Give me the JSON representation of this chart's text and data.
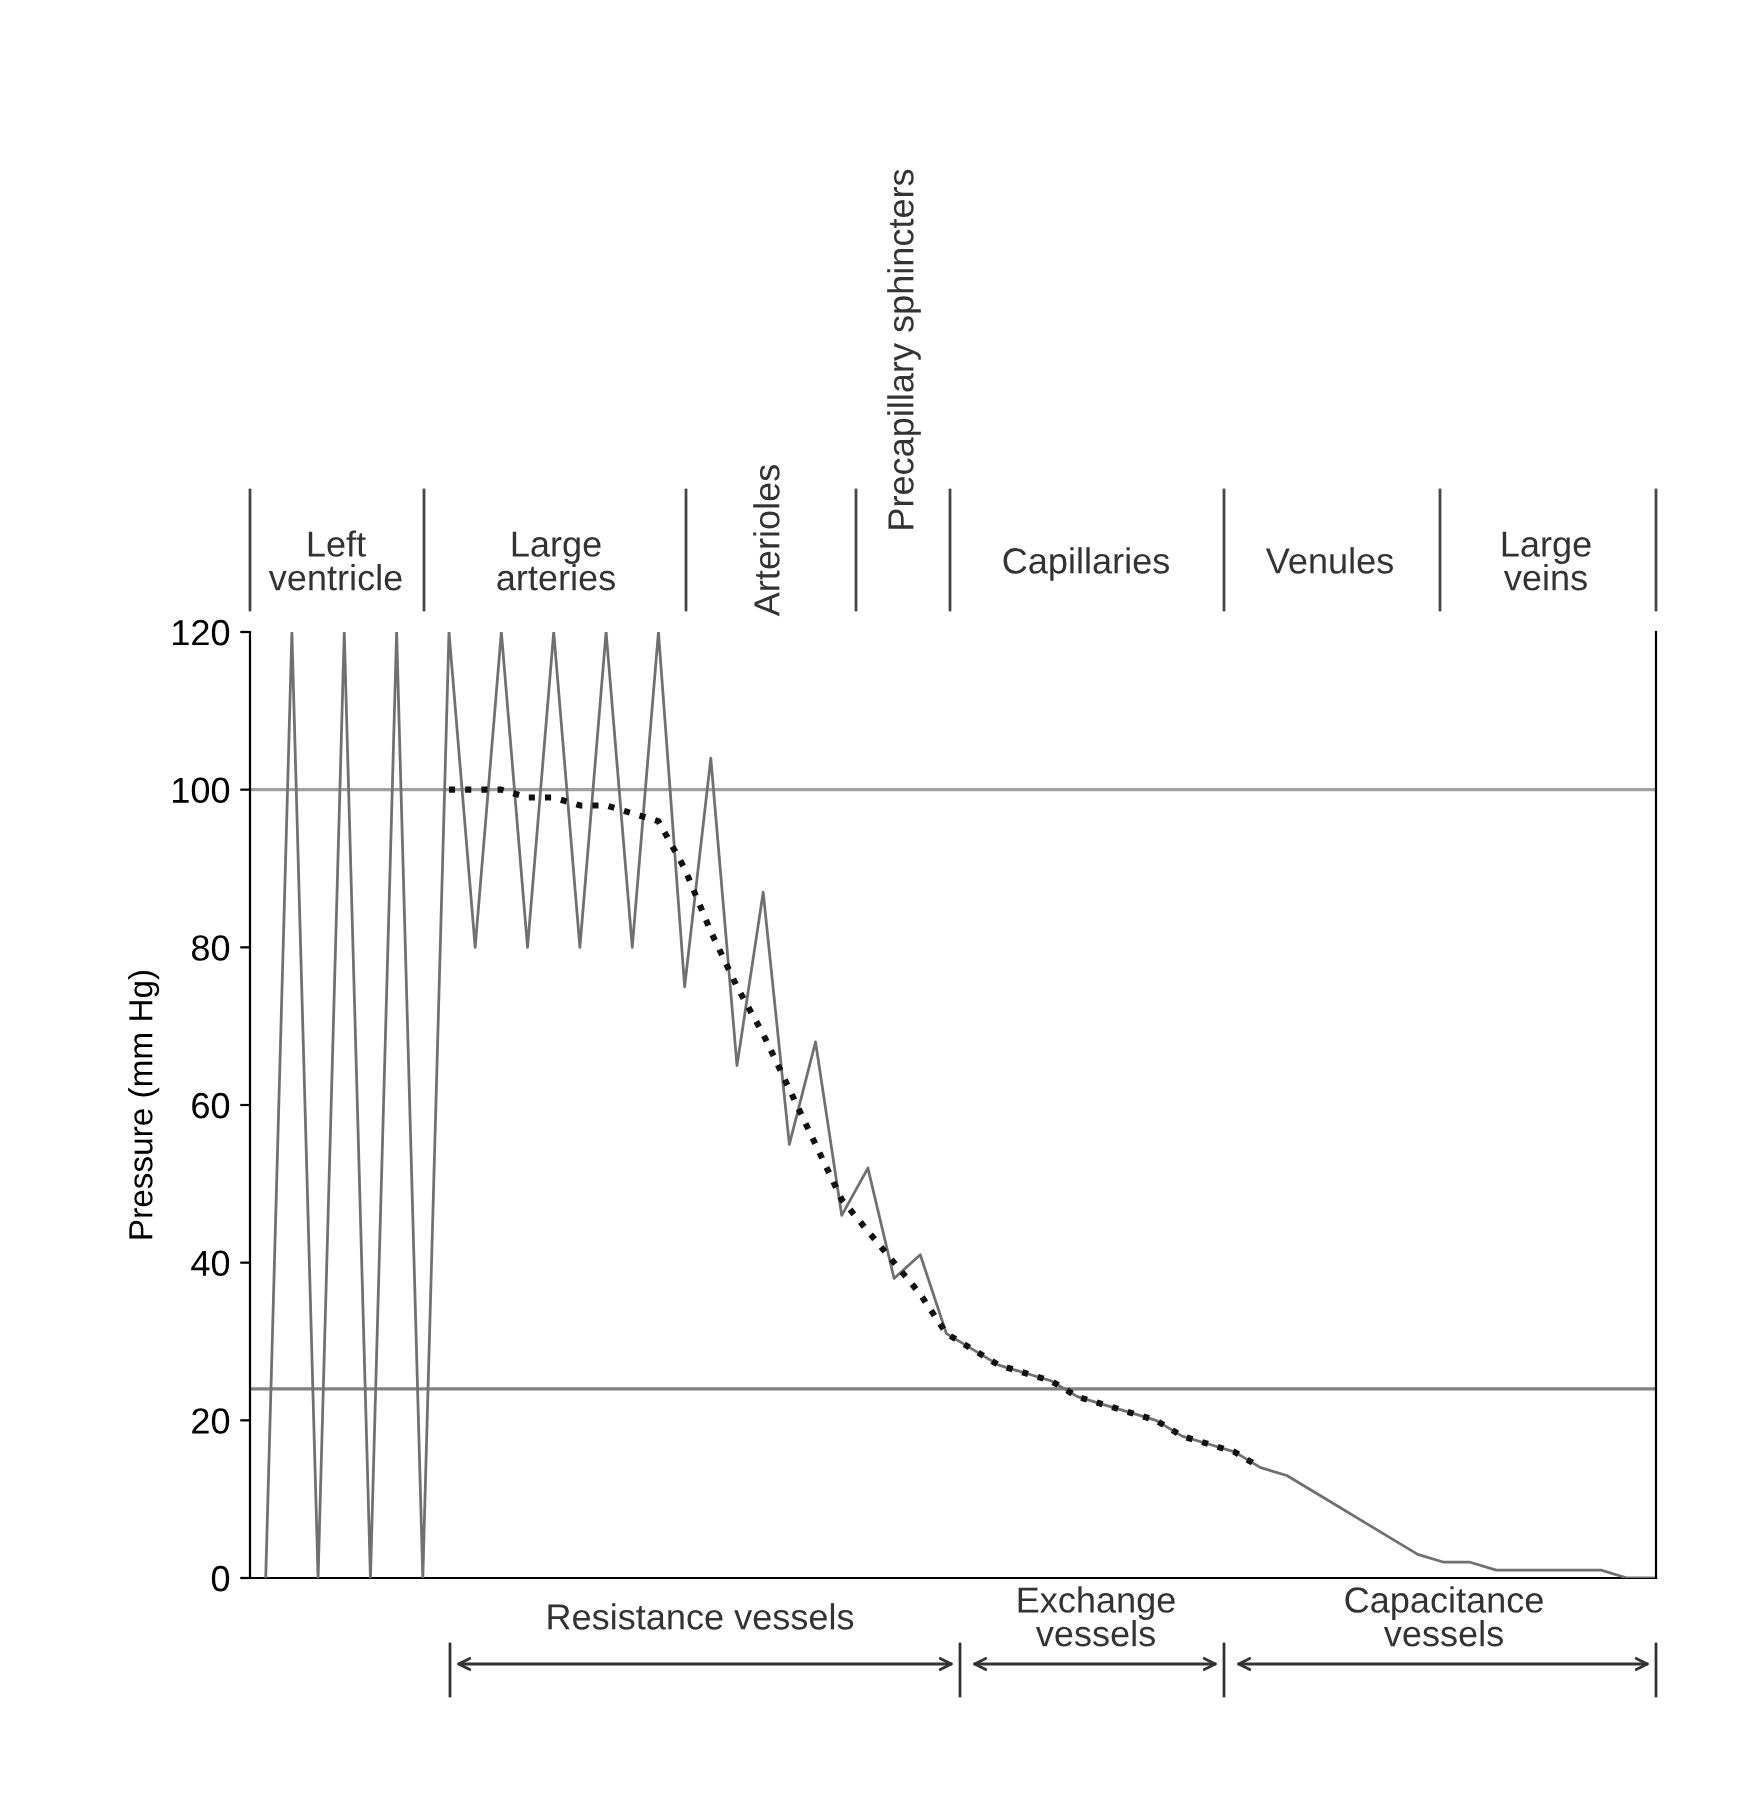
{
  "chart_data": {
    "type": "line",
    "ylabel": "Pressure (mm Hg)",
    "categories": [
      null,
      null,
      null,
      null,
      null,
      null,
      null,
      null,
      null,
      null,
      null,
      null,
      null,
      null,
      null,
      null,
      null,
      null,
      null,
      null,
      null,
      null,
      null,
      null,
      null,
      null,
      null,
      null,
      null,
      null,
      null,
      null,
      null,
      null,
      null,
      null,
      null,
      null,
      null,
      null,
      null,
      null,
      null,
      null,
      null,
      null,
      null,
      null,
      null,
      null,
      null,
      null,
      null,
      null
    ],
    "series": [
      {
        "color": "#707070",
        "line_style": "solid",
        "values": [
          0,
          120,
          0,
          120,
          0,
          120,
          0,
          120,
          80,
          120,
          80,
          120,
          80,
          120,
          80,
          120,
          75,
          104,
          65,
          87,
          55,
          68,
          46,
          52,
          38,
          41,
          31,
          29,
          27,
          26,
          25,
          23,
          22,
          21,
          20,
          18,
          17,
          16,
          14,
          13,
          11,
          9,
          7,
          5,
          3,
          2,
          2,
          1,
          1,
          1,
          1,
          1,
          0,
          0
        ]
      },
      {
        "color": "#111111",
        "line_style": "dotted",
        "values": [
          null,
          null,
          null,
          null,
          null,
          null,
          null,
          100,
          100,
          100,
          99,
          99,
          98,
          98,
          97,
          96,
          90,
          82,
          75,
          69,
          62,
          55,
          48,
          44,
          40,
          36,
          31,
          29,
          27,
          26,
          25,
          23,
          22,
          21,
          20,
          18,
          17,
          16,
          14,
          null,
          null,
          null,
          null,
          null,
          null,
          null,
          null,
          null,
          null,
          null,
          null,
          null,
          null,
          null
        ]
      }
    ],
    "ylim": [
      0,
      120
    ],
    "yticks": [
      0,
      20,
      40,
      60,
      80,
      100,
      120
    ],
    "grid": false,
    "legend": false,
    "ref_lines": [
      {
        "axis": "y",
        "value": 100,
        "color": "#a0a0a0"
      },
      {
        "axis": "y",
        "value": 24,
        "color": "#808080"
      }
    ],
    "annotations": [
      "Left\nventricle",
      "Large\narteries",
      "Arterioles",
      "Precapillary sphincters",
      "Capillaries",
      "Venules",
      "Large\nveins",
      "Resistance vessels",
      "Exchange\nvessels",
      "Capacitance\nvessels"
    ]
  }
}
